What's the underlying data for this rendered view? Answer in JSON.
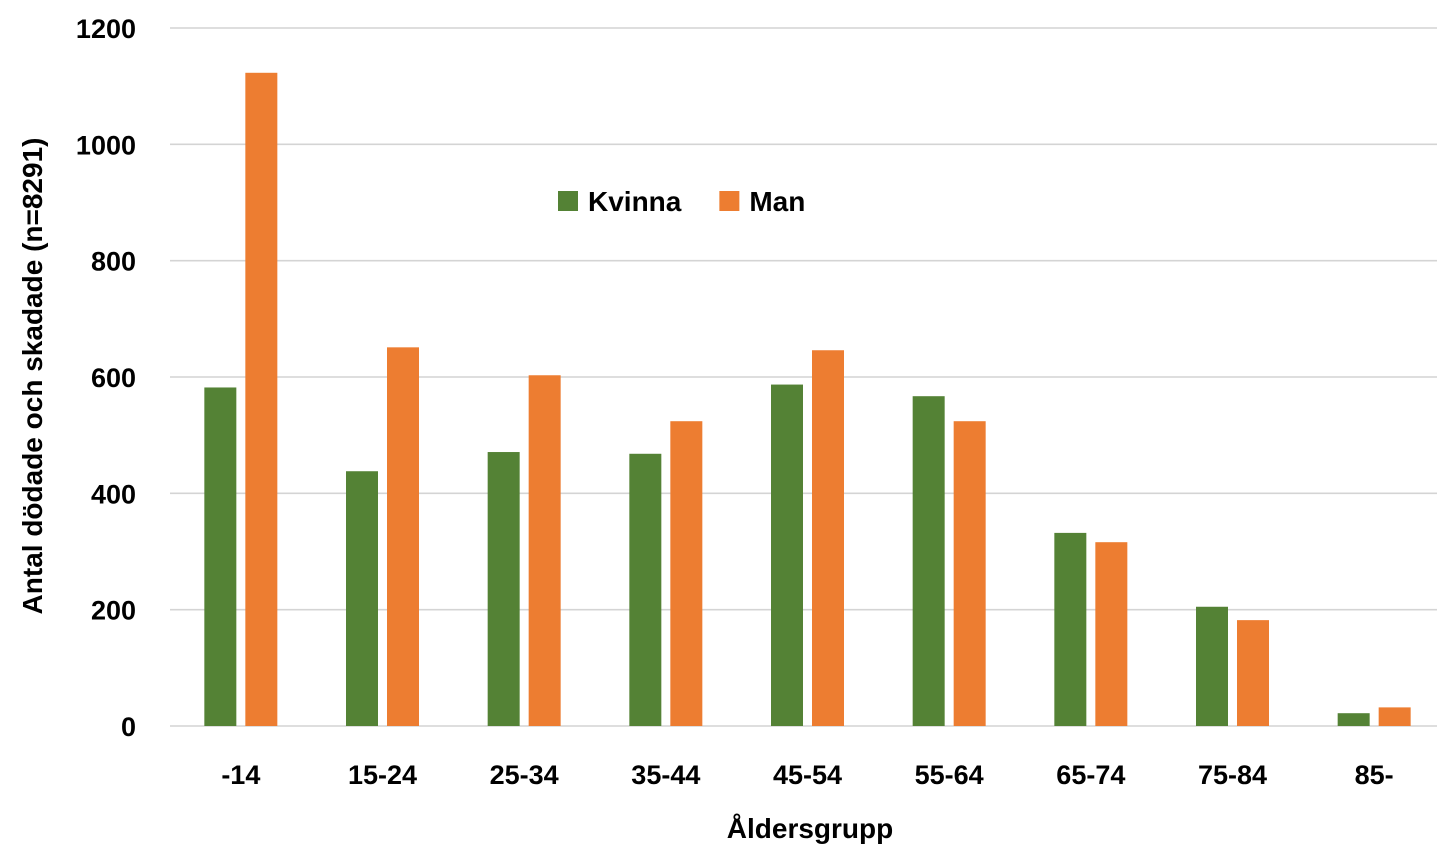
{
  "chart_data": {
    "type": "bar",
    "categories": [
      "-14",
      "15-24",
      "25-34",
      "35-44",
      "45-54",
      "55-64",
      "65-74",
      "75-84",
      "85-"
    ],
    "series": [
      {
        "name": "Kvinna",
        "color": "#548235",
        "values": [
          582,
          438,
          471,
          468,
          587,
          567,
          332,
          205,
          22
        ]
      },
      {
        "name": "Man",
        "color": "#ED7D31",
        "values": [
          1123,
          651,
          603,
          524,
          646,
          524,
          316,
          182,
          32
        ]
      }
    ],
    "xlabel": "Åldersgrupp",
    "ylabel": "Antal dödade och skadade (n=8291)",
    "ylim": [
      0,
      1200
    ],
    "yticks": [
      0,
      200,
      400,
      600,
      800,
      1000,
      1200
    ],
    "grid": true,
    "legend_position": "top-center"
  }
}
